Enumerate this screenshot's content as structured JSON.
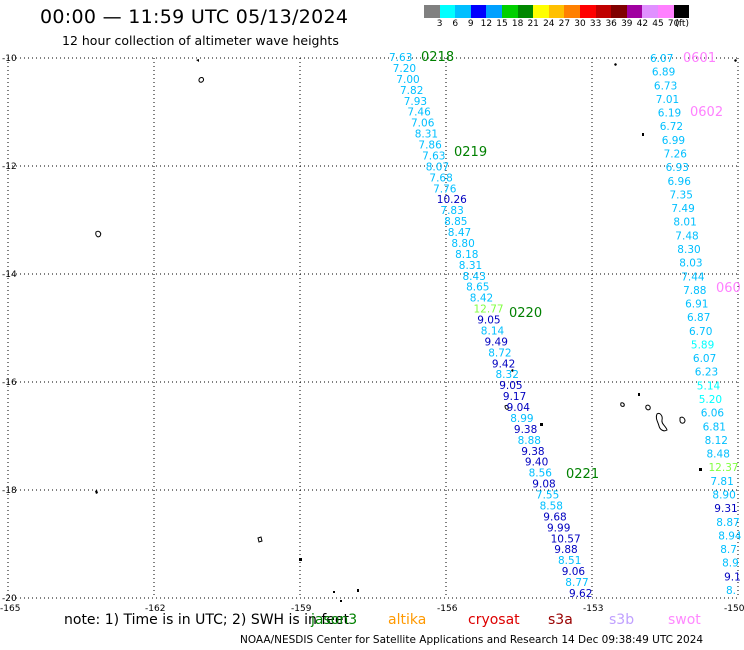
{
  "title": "00:00 — 11:59 UTC 05/13/2024",
  "subtitle": "12 hour collection of altimeter wave heights",
  "colorbar": {
    "unit": "(ft)",
    "ticks": [
      "3",
      "6",
      "9",
      "12",
      "15",
      "18",
      "21",
      "24",
      "27",
      "30",
      "33",
      "36",
      "39",
      "42",
      "45",
      "70"
    ],
    "colors": [
      "#808080",
      "#00ffff",
      "#00bfff",
      "#0000ff",
      "#00a0ff",
      "#00d000",
      "#008800",
      "#ffff00",
      "#ffc000",
      "#ff8000",
      "#ff0000",
      "#c00000",
      "#800000",
      "#a000a0",
      "#e090ff",
      "#ff80ff",
      "#000000"
    ]
  },
  "axes": {
    "lat_labels": [
      "-10",
      "-12",
      "-14",
      "-16",
      "-18",
      "-20"
    ],
    "lon_labels": [
      "-165",
      "-162",
      "-159",
      "-156",
      "-153",
      "-150"
    ]
  },
  "passes": {
    "p0218": {
      "label": "0218",
      "color": "#008000"
    },
    "p0219": {
      "label": "0219",
      "color": "#008000"
    },
    "p0220": {
      "label": "0220",
      "color": "#008000"
    },
    "p0221": {
      "label": "0221",
      "color": "#008000"
    },
    "p0601": {
      "label": "0601",
      "color": "#ff80ff"
    },
    "p0602": {
      "label": "0602",
      "color": "#ff80ff"
    },
    "p0603": {
      "label": "060",
      "color": "#ff80ff"
    }
  },
  "track_a": [
    {
      "v": "7.63",
      "c": "#00bfff"
    },
    {
      "v": "7.20",
      "c": "#00bfff"
    },
    {
      "v": "7.00",
      "c": "#00bfff"
    },
    {
      "v": "7.82",
      "c": "#00bfff"
    },
    {
      "v": "7.93",
      "c": "#00bfff"
    },
    {
      "v": "7.46",
      "c": "#00bfff"
    },
    {
      "v": "7.06",
      "c": "#00bfff"
    },
    {
      "v": "8.31",
      "c": "#00bfff"
    },
    {
      "v": "7.86",
      "c": "#00bfff"
    },
    {
      "v": "7.63",
      "c": "#00bfff"
    },
    {
      "v": "8.07",
      "c": "#00bfff"
    },
    {
      "v": "7.68",
      "c": "#00bfff"
    },
    {
      "v": "7.76",
      "c": "#00bfff"
    },
    {
      "v": "10.26",
      "c": "#0000c0"
    },
    {
      "v": "7.83",
      "c": "#00bfff"
    },
    {
      "v": "8.85",
      "c": "#00bfff"
    },
    {
      "v": "8.47",
      "c": "#00bfff"
    },
    {
      "v": "8.80",
      "c": "#00bfff"
    },
    {
      "v": "8.18",
      "c": "#00bfff"
    },
    {
      "v": "8.31",
      "c": "#00bfff"
    },
    {
      "v": "8.43",
      "c": "#00bfff"
    },
    {
      "v": "8.65",
      "c": "#00bfff"
    },
    {
      "v": "8.42",
      "c": "#00bfff"
    },
    {
      "v": "12.77",
      "c": "#80ff40"
    },
    {
      "v": "9.05",
      "c": "#0000c0"
    },
    {
      "v": "8.14",
      "c": "#00bfff"
    },
    {
      "v": "9.49",
      "c": "#0000c0"
    },
    {
      "v": "8.72",
      "c": "#00bfff"
    },
    {
      "v": "9.42",
      "c": "#0000c0"
    },
    {
      "v": "8.32",
      "c": "#00bfff"
    },
    {
      "v": "9.05",
      "c": "#0000c0"
    },
    {
      "v": "9.17",
      "c": "#0000c0"
    },
    {
      "v": "9.04",
      "c": "#0000c0"
    },
    {
      "v": "8.99",
      "c": "#00bfff"
    },
    {
      "v": "9.38",
      "c": "#0000c0"
    },
    {
      "v": "8.88",
      "c": "#00bfff"
    },
    {
      "v": "9.38",
      "c": "#0000c0"
    },
    {
      "v": "9.40",
      "c": "#0000c0"
    },
    {
      "v": "8.56",
      "c": "#00bfff"
    },
    {
      "v": "9.08",
      "c": "#0000c0"
    },
    {
      "v": "7.55",
      "c": "#00bfff"
    },
    {
      "v": "8.58",
      "c": "#00bfff"
    },
    {
      "v": "9.68",
      "c": "#0000c0"
    },
    {
      "v": "9.99",
      "c": "#0000c0"
    },
    {
      "v": "10.57",
      "c": "#0000c0"
    },
    {
      "v": "9.88",
      "c": "#0000c0"
    },
    {
      "v": "8.51",
      "c": "#00bfff"
    },
    {
      "v": "9.06",
      "c": "#0000c0"
    },
    {
      "v": "8.77",
      "c": "#00bfff"
    },
    {
      "v": "9.62",
      "c": "#0000c0"
    }
  ],
  "track_b": [
    {
      "v": "6.07",
      "c": "#00bfff"
    },
    {
      "v": "6.89",
      "c": "#00bfff"
    },
    {
      "v": "6.73",
      "c": "#00bfff"
    },
    {
      "v": "7.01",
      "c": "#00bfff"
    },
    {
      "v": "6.19",
      "c": "#00bfff"
    },
    {
      "v": "6.72",
      "c": "#00bfff"
    },
    {
      "v": "6.99",
      "c": "#00bfff"
    },
    {
      "v": "7.26",
      "c": "#00bfff"
    },
    {
      "v": "6.93",
      "c": "#00bfff"
    },
    {
      "v": "6.96",
      "c": "#00bfff"
    },
    {
      "v": "7.35",
      "c": "#00bfff"
    },
    {
      "v": "7.49",
      "c": "#00bfff"
    },
    {
      "v": "8.01",
      "c": "#00bfff"
    },
    {
      "v": "7.48",
      "c": "#00bfff"
    },
    {
      "v": "8.30",
      "c": "#00bfff"
    },
    {
      "v": "8.03",
      "c": "#00bfff"
    },
    {
      "v": "7.44",
      "c": "#00bfff"
    },
    {
      "v": "7.88",
      "c": "#00bfff"
    },
    {
      "v": "6.91",
      "c": "#00bfff"
    },
    {
      "v": "6.87",
      "c": "#00bfff"
    },
    {
      "v": "6.70",
      "c": "#00bfff"
    },
    {
      "v": "5.89",
      "c": "#00ffff"
    },
    {
      "v": "6.07",
      "c": "#00bfff"
    },
    {
      "v": "6.23",
      "c": "#00bfff"
    },
    {
      "v": "5.14",
      "c": "#00ffff"
    },
    {
      "v": "5.20",
      "c": "#00ffff"
    },
    {
      "v": "6.06",
      "c": "#00bfff"
    },
    {
      "v": "6.81",
      "c": "#00bfff"
    },
    {
      "v": "8.12",
      "c": "#00bfff"
    },
    {
      "v": "8.48",
      "c": "#00bfff"
    },
    {
      "v": "12.37",
      "c": "#80ff40"
    },
    {
      "v": "7.81",
      "c": "#00bfff"
    },
    {
      "v": "8.90",
      "c": "#00bfff"
    },
    {
      "v": "9.31",
      "c": "#0000c0"
    },
    {
      "v": "8.87",
      "c": "#00bfff"
    },
    {
      "v": "8.94",
      "c": "#00bfff"
    },
    {
      "v": "8.7",
      "c": "#00bfff"
    },
    {
      "v": "8.9",
      "c": "#00bfff"
    },
    {
      "v": "9.1",
      "c": "#0000c0"
    },
    {
      "v": "8.",
      "c": "#00bfff"
    }
  ],
  "footer": {
    "note": "note: 1) Time is in UTC; 2) SWH is in feet",
    "credit": "NOAA/NESDIS Center for Satellite Applications and Research    14 Dec 09:38:49 UTC 2024"
  },
  "satellites": [
    {
      "name": "jason3",
      "color": "#008000"
    },
    {
      "name": "altika",
      "color": "#ff9900"
    },
    {
      "name": "cryosat",
      "color": "#dd0000"
    },
    {
      "name": "s3a",
      "color": "#990000"
    },
    {
      "name": "s3b",
      "color": "#c0a0ff"
    },
    {
      "name": "swot",
      "color": "#ff88ff"
    }
  ]
}
